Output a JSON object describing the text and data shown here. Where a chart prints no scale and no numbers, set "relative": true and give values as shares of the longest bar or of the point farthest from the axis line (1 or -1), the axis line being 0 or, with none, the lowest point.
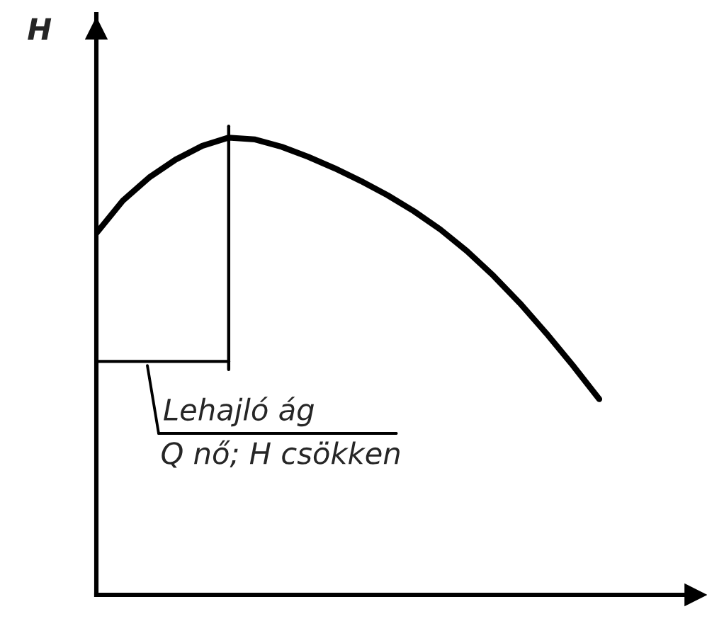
{
  "chart_data": {
    "type": "line",
    "relative": true,
    "ylabel": "H",
    "categories": [
      null,
      null,
      null,
      null,
      null,
      null,
      null,
      null,
      null,
      null,
      null,
      null,
      null,
      null,
      null,
      null,
      null,
      null,
      null,
      null
    ],
    "series": [
      {
        "color": "#000000",
        "values": [
          0.791,
          0.862,
          0.913,
          0.952,
          0.982,
          1,
          0.996,
          0.98,
          0.958,
          0.933,
          0.905,
          0.874,
          0.839,
          0.799,
          0.752,
          0.698,
          0.638,
          0.572,
          0.502,
          0.428
        ]
      }
    ],
    "annotations": [
      "Lehajló ág",
      "Q nő; H csökken"
    ],
    "marker": "none",
    "line_style": "solid"
  }
}
